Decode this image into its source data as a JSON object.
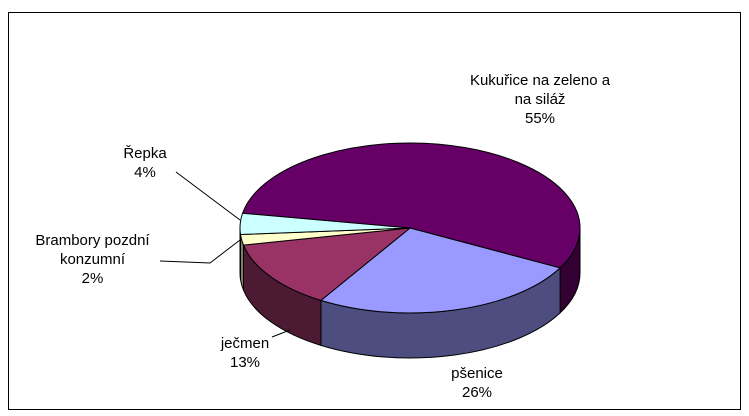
{
  "chart_data": {
    "type": "pie3d",
    "categories": [
      "Kukuřice na zeleno a na siláž",
      "pšenice",
      "ječmen",
      "Brambory pozdní konzumní",
      "Řepka"
    ],
    "values": [
      55,
      26,
      13,
      2,
      4
    ],
    "value_labels": [
      "55%",
      "26%",
      "13%",
      "2%",
      "4%"
    ],
    "colors": [
      "#660066",
      "#9999ff",
      "#993366",
      "#ffffcc",
      "#ccffff"
    ]
  }
}
